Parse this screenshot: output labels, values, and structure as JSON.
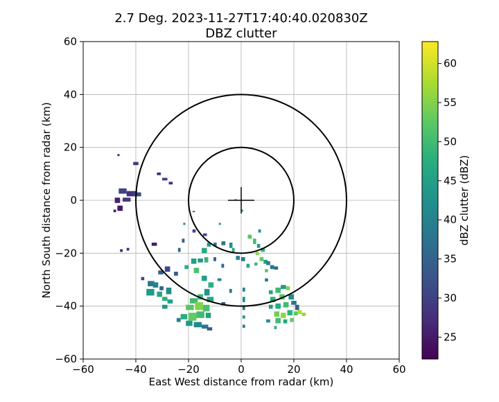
{
  "chart_data": {
    "type": "heatmap",
    "title_line1": "2.7 Deg. 2023-11-27T17:40:40.020830Z",
    "title_line2": "DBZ clutter",
    "xlabel": "East West distance from radar (km)",
    "ylabel": "North South distance from radar (km)",
    "xlim": [
      -60,
      60
    ],
    "ylim": [
      -60,
      60
    ],
    "xticks": [
      -60,
      -40,
      -20,
      0,
      20,
      40,
      60
    ],
    "yticks": [
      -60,
      -40,
      -20,
      0,
      20,
      40,
      60
    ],
    "grid": true,
    "range_rings_km": [
      20,
      40
    ],
    "center_cross_half_length_km": 5,
    "colorbar": {
      "label": "dBZ clutter (dBZ)",
      "vmin": 22.2,
      "vmax": 62.8,
      "ticks": [
        25,
        30,
        35,
        40,
        45,
        50,
        55,
        60
      ],
      "colormap": "viridis"
    },
    "clutter_cells": [
      {
        "x": -46.5,
        "y": 4.5,
        "w": 3,
        "h": 2,
        "dbz": 30
      },
      {
        "x": -43.5,
        "y": 3.5,
        "w": 4,
        "h": 2,
        "dbz": 28
      },
      {
        "x": -41,
        "y": 3,
        "w": 3,
        "h": 1.5,
        "dbz": 31
      },
      {
        "x": -48,
        "y": 1,
        "w": 2,
        "h": 2,
        "dbz": 26
      },
      {
        "x": -45,
        "y": 1,
        "w": 3,
        "h": 1.5,
        "dbz": 29
      },
      {
        "x": -47,
        "y": -2,
        "w": 2,
        "h": 2,
        "dbz": 25
      },
      {
        "x": -48.5,
        "y": -3.5,
        "w": 1,
        "h": 1,
        "dbz": 26
      },
      {
        "x": -47,
        "y": 17.5,
        "w": 0.8,
        "h": 0.8,
        "dbz": 27
      },
      {
        "x": -41,
        "y": 14.5,
        "w": 2,
        "h": 1.2,
        "dbz": 29
      },
      {
        "x": -32,
        "y": 10.5,
        "w": 1.5,
        "h": 1,
        "dbz": 27
      },
      {
        "x": -30,
        "y": 8.5,
        "w": 2,
        "h": 1,
        "dbz": 30
      },
      {
        "x": -27.5,
        "y": 7,
        "w": 1.5,
        "h": 1,
        "dbz": 28
      },
      {
        "x": -46,
        "y": -18.5,
        "w": 1,
        "h": 1,
        "dbz": 26
      },
      {
        "x": -43.5,
        "y": -18,
        "w": 1,
        "h": 1,
        "dbz": 27
      },
      {
        "x": -34,
        "y": -16,
        "w": 2,
        "h": 1.2,
        "dbz": 25
      },
      {
        "x": -29,
        "y": -25,
        "w": 2,
        "h": 2,
        "dbz": 31
      },
      {
        "x": -31.5,
        "y": -26.5,
        "w": 2,
        "h": 1.5,
        "dbz": 34
      },
      {
        "x": -25.5,
        "y": -27,
        "w": 1.5,
        "h": 1.5,
        "dbz": 33
      },
      {
        "x": -38,
        "y": -29,
        "w": 1.2,
        "h": 1.2,
        "dbz": 30
      },
      {
        "x": -35.5,
        "y": -30.5,
        "w": 2.5,
        "h": 2,
        "dbz": 38
      },
      {
        "x": -33.5,
        "y": -31,
        "w": 2,
        "h": 2,
        "dbz": 40
      },
      {
        "x": -31,
        "y": -32.5,
        "w": 1.5,
        "h": 1.5,
        "dbz": 35
      },
      {
        "x": -36,
        "y": -33.5,
        "w": 3,
        "h": 2.5,
        "dbz": 44
      },
      {
        "x": -32,
        "y": -34.5,
        "w": 2,
        "h": 2,
        "dbz": 46
      },
      {
        "x": -28.5,
        "y": -33,
        "w": 2,
        "h": 2.5,
        "dbz": 42
      },
      {
        "x": -30,
        "y": -36.5,
        "w": 2,
        "h": 1.5,
        "dbz": 48
      },
      {
        "x": -28,
        "y": -37.5,
        "w": 2,
        "h": 1.5,
        "dbz": 45
      },
      {
        "x": -30,
        "y": -39.5,
        "w": 2,
        "h": 1.5,
        "dbz": 43
      },
      {
        "x": -21.5,
        "y": -24.5,
        "w": 1.5,
        "h": 1.5,
        "dbz": 48
      },
      {
        "x": -19,
        "y": -22,
        "w": 2,
        "h": 2,
        "dbz": 45
      },
      {
        "x": -16.5,
        "y": -22,
        "w": 2,
        "h": 1.5,
        "dbz": 44
      },
      {
        "x": -15,
        "y": -18,
        "w": 2,
        "h": 2,
        "dbz": 47
      },
      {
        "x": -13,
        "y": -16,
        "w": 1.5,
        "h": 1.5,
        "dbz": 44
      },
      {
        "x": -14,
        "y": -21.5,
        "w": 1.5,
        "h": 2,
        "dbz": 49
      },
      {
        "x": -18,
        "y": -25.5,
        "w": 2,
        "h": 2,
        "dbz": 51
      },
      {
        "x": -24,
        "y": -18,
        "w": 1,
        "h": 1.5,
        "dbz": 36
      },
      {
        "x": -22.5,
        "y": -14.5,
        "w": 1,
        "h": 1.5,
        "dbz": 34
      },
      {
        "x": -18.5,
        "y": -11,
        "w": 1.2,
        "h": 1.2,
        "dbz": 30
      },
      {
        "x": -14.5,
        "y": -12.5,
        "w": 1.5,
        "h": 1,
        "dbz": 32
      },
      {
        "x": -10.5,
        "y": -16,
        "w": 1.2,
        "h": 1.5,
        "dbz": 36
      },
      {
        "x": -7.5,
        "y": -15.5,
        "w": 1.5,
        "h": 1.5,
        "dbz": 38
      },
      {
        "x": -4.5,
        "y": -16,
        "w": 1.2,
        "h": 2,
        "dbz": 42
      },
      {
        "x": -3.5,
        "y": -18,
        "w": 1,
        "h": 1.5,
        "dbz": 47
      },
      {
        "x": -2,
        "y": -21,
        "w": 1.5,
        "h": 1.5,
        "dbz": 40
      },
      {
        "x": -10.5,
        "y": -21.5,
        "w": 1,
        "h": 1.5,
        "dbz": 34
      },
      {
        "x": -7.5,
        "y": -24,
        "w": 1,
        "h": 1.5,
        "dbz": 35
      },
      {
        "x": 0,
        "y": -21.5,
        "w": 1.5,
        "h": 1.5,
        "dbz": 38
      },
      {
        "x": 2,
        "y": -24,
        "w": 1.2,
        "h": 1.5,
        "dbz": 46
      },
      {
        "x": 2.5,
        "y": -13,
        "w": 1.5,
        "h": 1.5,
        "dbz": 52
      },
      {
        "x": 4.5,
        "y": -14.5,
        "w": 1.2,
        "h": 2,
        "dbz": 50
      },
      {
        "x": 6,
        "y": -16.5,
        "w": 1.2,
        "h": 1.5,
        "dbz": 44
      },
      {
        "x": 7.5,
        "y": -18,
        "w": 1.5,
        "h": 1.5,
        "dbz": 48
      },
      {
        "x": 5.5,
        "y": -19.5,
        "w": 1.2,
        "h": 1.2,
        "dbz": 55
      },
      {
        "x": 7,
        "y": -21.5,
        "w": 1.5,
        "h": 1.5,
        "dbz": 53
      },
      {
        "x": 8.5,
        "y": -22.5,
        "w": 1.5,
        "h": 1.5,
        "dbz": 45
      },
      {
        "x": 9.5,
        "y": -23,
        "w": 1.5,
        "h": 1.5,
        "dbz": 40
      },
      {
        "x": 11,
        "y": -24.5,
        "w": 1.5,
        "h": 1.5,
        "dbz": 38
      },
      {
        "x": 12.5,
        "y": -25,
        "w": 1.5,
        "h": 1.2,
        "dbz": 36
      },
      {
        "x": 5,
        "y": -23.5,
        "w": 1.2,
        "h": 1.2,
        "dbz": 50
      },
      {
        "x": 9,
        "y": -26,
        "w": 1.2,
        "h": 1.2,
        "dbz": 52
      },
      {
        "x": 6.5,
        "y": -11,
        "w": 1,
        "h": 1.2,
        "dbz": 42
      },
      {
        "x": 0,
        "y": -3.5,
        "w": 0.8,
        "h": 0.8,
        "dbz": 48
      },
      {
        "x": -2.5,
        "y": 0.5,
        "w": 0.8,
        "h": 0.5,
        "dbz": 50
      },
      {
        "x": -18.5,
        "y": -4,
        "w": 1,
        "h": 0.5,
        "dbz": 39
      },
      {
        "x": -8.5,
        "y": -8.5,
        "w": 0.8,
        "h": 0.8,
        "dbz": 46
      },
      {
        "x": -22,
        "y": -8.5,
        "w": 0.8,
        "h": 0.8,
        "dbz": 40
      },
      {
        "x": -9,
        "y": -29.5,
        "w": 1.5,
        "h": 1,
        "dbz": 40
      },
      {
        "x": -15,
        "y": -28.5,
        "w": 2,
        "h": 2,
        "dbz": 45
      },
      {
        "x": -12.5,
        "y": -31,
        "w": 2,
        "h": 2,
        "dbz": 48
      },
      {
        "x": -14,
        "y": -33.5,
        "w": 2,
        "h": 2.5,
        "dbz": 43
      },
      {
        "x": -13,
        "y": -36.5,
        "w": 2.5,
        "h": 2,
        "dbz": 46
      },
      {
        "x": -16.5,
        "y": -35.5,
        "w": 2,
        "h": 2,
        "dbz": 49
      },
      {
        "x": -19.5,
        "y": -37,
        "w": 3,
        "h": 2,
        "dbz": 50
      },
      {
        "x": -21,
        "y": -39.5,
        "w": 3,
        "h": 2,
        "dbz": 52
      },
      {
        "x": -17.5,
        "y": -38.5,
        "w": 3,
        "h": 3,
        "dbz": 55
      },
      {
        "x": -14.5,
        "y": -39.5,
        "w": 2.5,
        "h": 2.5,
        "dbz": 51
      },
      {
        "x": -20,
        "y": -42.5,
        "w": 3,
        "h": 3,
        "dbz": 53
      },
      {
        "x": -23,
        "y": -43,
        "w": 2.5,
        "h": 2,
        "dbz": 47
      },
      {
        "x": -17,
        "y": -42,
        "w": 3,
        "h": 2.5,
        "dbz": 50
      },
      {
        "x": -13.5,
        "y": -42.5,
        "w": 2,
        "h": 2,
        "dbz": 45
      },
      {
        "x": -21,
        "y": -45.5,
        "w": 2.5,
        "h": 2,
        "dbz": 44
      },
      {
        "x": -18,
        "y": -46,
        "w": 3,
        "h": 2,
        "dbz": 41
      },
      {
        "x": -15,
        "y": -47,
        "w": 2.5,
        "h": 1.5,
        "dbz": 38
      },
      {
        "x": -13,
        "y": -48,
        "w": 2,
        "h": 1.2,
        "dbz": 34
      },
      {
        "x": -24.5,
        "y": -44.5,
        "w": 1.5,
        "h": 1.5,
        "dbz": 40
      },
      {
        "x": -7.5,
        "y": -38.5,
        "w": 1.5,
        "h": 1.2,
        "dbz": 34
      },
      {
        "x": -4.5,
        "y": -33.5,
        "w": 1,
        "h": 1.5,
        "dbz": 38
      },
      {
        "x": 0.5,
        "y": -33,
        "w": 1,
        "h": 1.5,
        "dbz": 40
      },
      {
        "x": 0.5,
        "y": -36.5,
        "w": 1,
        "h": 2,
        "dbz": 42
      },
      {
        "x": 0.5,
        "y": -40,
        "w": 1,
        "h": 1.5,
        "dbz": 38
      },
      {
        "x": 0.5,
        "y": -43.5,
        "w": 1,
        "h": 1.2,
        "dbz": 44
      },
      {
        "x": 0.5,
        "y": -47,
        "w": 1,
        "h": 1.2,
        "dbz": 40
      },
      {
        "x": 9,
        "y": -29.5,
        "w": 1.2,
        "h": 1.2,
        "dbz": 38
      },
      {
        "x": 10.5,
        "y": -34,
        "w": 1.5,
        "h": 1.5,
        "dbz": 46
      },
      {
        "x": 13,
        "y": -33,
        "w": 2,
        "h": 2,
        "dbz": 50
      },
      {
        "x": 15,
        "y": -32,
        "w": 2,
        "h": 1.5,
        "dbz": 44
      },
      {
        "x": 17,
        "y": -32.5,
        "w": 1.5,
        "h": 1.5,
        "dbz": 55
      },
      {
        "x": 11,
        "y": -36.5,
        "w": 2,
        "h": 2,
        "dbz": 48
      },
      {
        "x": 14.5,
        "y": -35.5,
        "w": 2,
        "h": 2,
        "dbz": 52
      },
      {
        "x": 18,
        "y": -35.5,
        "w": 2,
        "h": 2,
        "dbz": 42
      },
      {
        "x": 10.5,
        "y": -39.5,
        "w": 1.5,
        "h": 1.5,
        "dbz": 44
      },
      {
        "x": 13,
        "y": -39,
        "w": 2,
        "h": 2,
        "dbz": 47
      },
      {
        "x": 16,
        "y": -38.5,
        "w": 2,
        "h": 2,
        "dbz": 50
      },
      {
        "x": 19,
        "y": -38,
        "w": 2,
        "h": 1.5,
        "dbz": 38
      },
      {
        "x": 20.5,
        "y": -39.5,
        "w": 1.5,
        "h": 2,
        "dbz": 34
      },
      {
        "x": 12.5,
        "y": -42,
        "w": 2,
        "h": 2,
        "dbz": 54
      },
      {
        "x": 15,
        "y": -42.5,
        "w": 2,
        "h": 2,
        "dbz": 56
      },
      {
        "x": 17.5,
        "y": -41.5,
        "w": 2,
        "h": 2,
        "dbz": 48
      },
      {
        "x": 20,
        "y": -42,
        "w": 1.5,
        "h": 1.5,
        "dbz": 52
      },
      {
        "x": 21.5,
        "y": -41.5,
        "w": 1.5,
        "h": 1.5,
        "dbz": 58
      },
      {
        "x": 23,
        "y": -42.5,
        "w": 1.5,
        "h": 1.2,
        "dbz": 56
      },
      {
        "x": 13,
        "y": -44.5,
        "w": 2,
        "h": 2,
        "dbz": 50
      },
      {
        "x": 16,
        "y": -45,
        "w": 1.5,
        "h": 1.5,
        "dbz": 46
      },
      {
        "x": 18.5,
        "y": -44.5,
        "w": 1.5,
        "h": 1.5,
        "dbz": 53
      },
      {
        "x": 12.5,
        "y": -47.5,
        "w": 1,
        "h": 1.2,
        "dbz": 48
      },
      {
        "x": 9.5,
        "y": -45,
        "w": 1.5,
        "h": 1.2,
        "dbz": 42
      }
    ]
  }
}
